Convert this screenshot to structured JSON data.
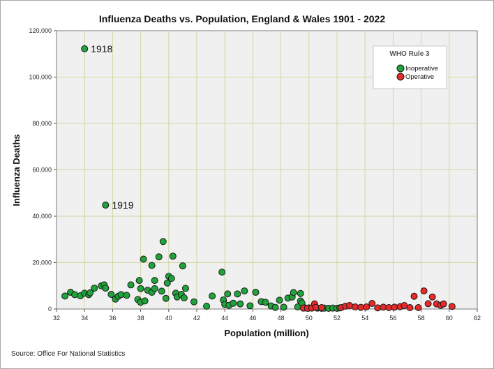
{
  "chart_data": {
    "type": "scatter",
    "title": "Influenza Deaths vs. Population, England & Wales 1901 - 2022",
    "xlabel": "Population (million)",
    "ylabel": "Influenza Deaths",
    "xlim": [
      32,
      62
    ],
    "ylim": [
      0,
      120000
    ],
    "x_ticks": [
      32,
      34,
      36,
      38,
      40,
      42,
      44,
      46,
      48,
      50,
      52,
      54,
      56,
      58,
      60,
      62
    ],
    "y_ticks": [
      0,
      20000,
      40000,
      60000,
      80000,
      100000,
      120000
    ],
    "y_tick_labels": [
      "0",
      "20,000",
      "40,000",
      "60,000",
      "80,000",
      "100,000",
      "120,000"
    ],
    "grid": true,
    "legend": {
      "title": "WHO Rule 3",
      "position": "top-right",
      "entries": [
        {
          "label": "Inoperative",
          "color": "#1fa33a"
        },
        {
          "label": "Operative",
          "color": "#e62a2a"
        }
      ]
    },
    "series": [
      {
        "name": "Inoperative",
        "color": "#1fa33a",
        "points": [
          [
            32.6,
            5600
          ],
          [
            33.0,
            7200
          ],
          [
            33.3,
            6200
          ],
          [
            33.7,
            5700
          ],
          [
            34.0,
            6800
          ],
          [
            34.0,
            112200
          ],
          [
            34.3,
            6200
          ],
          [
            34.4,
            7000
          ],
          [
            34.7,
            9000
          ],
          [
            35.2,
            10000
          ],
          [
            35.4,
            10400
          ],
          [
            35.5,
            9000
          ],
          [
            35.5,
            44800
          ],
          [
            35.9,
            6300
          ],
          [
            36.2,
            4300
          ],
          [
            36.4,
            5500
          ],
          [
            36.6,
            6200
          ],
          [
            37.0,
            5900
          ],
          [
            37.3,
            10400
          ],
          [
            37.8,
            4100
          ],
          [
            37.9,
            12300
          ],
          [
            38.0,
            2900
          ],
          [
            38.0,
            8800
          ],
          [
            38.2,
            21500
          ],
          [
            38.3,
            3500
          ],
          [
            38.5,
            8100
          ],
          [
            38.8,
            7200
          ],
          [
            38.8,
            18800
          ],
          [
            39.0,
            12300
          ],
          [
            39.0,
            8800
          ],
          [
            39.3,
            22500
          ],
          [
            39.5,
            7700
          ],
          [
            39.6,
            29100
          ],
          [
            39.8,
            4600
          ],
          [
            39.9,
            11200
          ],
          [
            40.0,
            14100
          ],
          [
            40.2,
            13200
          ],
          [
            40.3,
            22800
          ],
          [
            40.5,
            6800
          ],
          [
            40.6,
            5200
          ],
          [
            40.9,
            6300
          ],
          [
            41.0,
            18600
          ],
          [
            41.1,
            4800
          ],
          [
            41.2,
            8900
          ],
          [
            41.8,
            3100
          ],
          [
            42.7,
            1200
          ],
          [
            43.1,
            5600
          ],
          [
            43.8,
            15900
          ],
          [
            43.9,
            3900
          ],
          [
            44.0,
            2000
          ],
          [
            44.2,
            6500
          ],
          [
            44.3,
            1600
          ],
          [
            44.6,
            2500
          ],
          [
            44.9,
            6500
          ],
          [
            45.1,
            2200
          ],
          [
            45.4,
            7800
          ],
          [
            45.8,
            1400
          ],
          [
            46.2,
            7200
          ],
          [
            46.6,
            3200
          ],
          [
            46.9,
            2900
          ],
          [
            47.3,
            1300
          ],
          [
            47.6,
            700
          ],
          [
            47.9,
            3800
          ],
          [
            48.2,
            800
          ],
          [
            48.5,
            4700
          ],
          [
            48.8,
            5200
          ],
          [
            48.9,
            7100
          ],
          [
            49.2,
            900
          ],
          [
            49.4,
            3500
          ],
          [
            49.5,
            2600
          ],
          [
            49.4,
            6700
          ],
          [
            49.7,
            500
          ],
          [
            50.0,
            500
          ],
          [
            50.3,
            700
          ],
          [
            50.6,
            400
          ],
          [
            50.9,
            300
          ],
          [
            51.1,
            400
          ],
          [
            51.4,
            300
          ],
          [
            51.7,
            400
          ],
          [
            52.0,
            300
          ],
          [
            52.2,
            500
          ]
        ]
      },
      {
        "name": "Operative",
        "color": "#e62a2a",
        "points": [
          [
            49.6,
            400
          ],
          [
            49.9,
            300
          ],
          [
            50.2,
            400
          ],
          [
            50.4,
            2200
          ],
          [
            50.5,
            700
          ],
          [
            50.9,
            600
          ],
          [
            52.3,
            600
          ],
          [
            52.6,
            1200
          ],
          [
            52.9,
            1500
          ],
          [
            53.3,
            900
          ],
          [
            53.7,
            700
          ],
          [
            54.1,
            900
          ],
          [
            54.5,
            2400
          ],
          [
            54.9,
            500
          ],
          [
            55.3,
            800
          ],
          [
            55.7,
            600
          ],
          [
            56.1,
            800
          ],
          [
            56.5,
            1000
          ],
          [
            56.8,
            1500
          ],
          [
            57.2,
            600
          ],
          [
            57.5,
            5500
          ],
          [
            57.8,
            600
          ],
          [
            58.2,
            7800
          ],
          [
            58.5,
            2300
          ],
          [
            58.8,
            5200
          ],
          [
            59.1,
            2200
          ],
          [
            59.4,
            1600
          ],
          [
            59.6,
            2200
          ],
          [
            60.2,
            1100
          ]
        ]
      }
    ],
    "annotations": [
      {
        "text": "1918",
        "x": 34.0,
        "y": 112200
      },
      {
        "text": "1919",
        "x": 35.5,
        "y": 44800
      }
    ],
    "source": "Source: Office For National Statistics"
  }
}
